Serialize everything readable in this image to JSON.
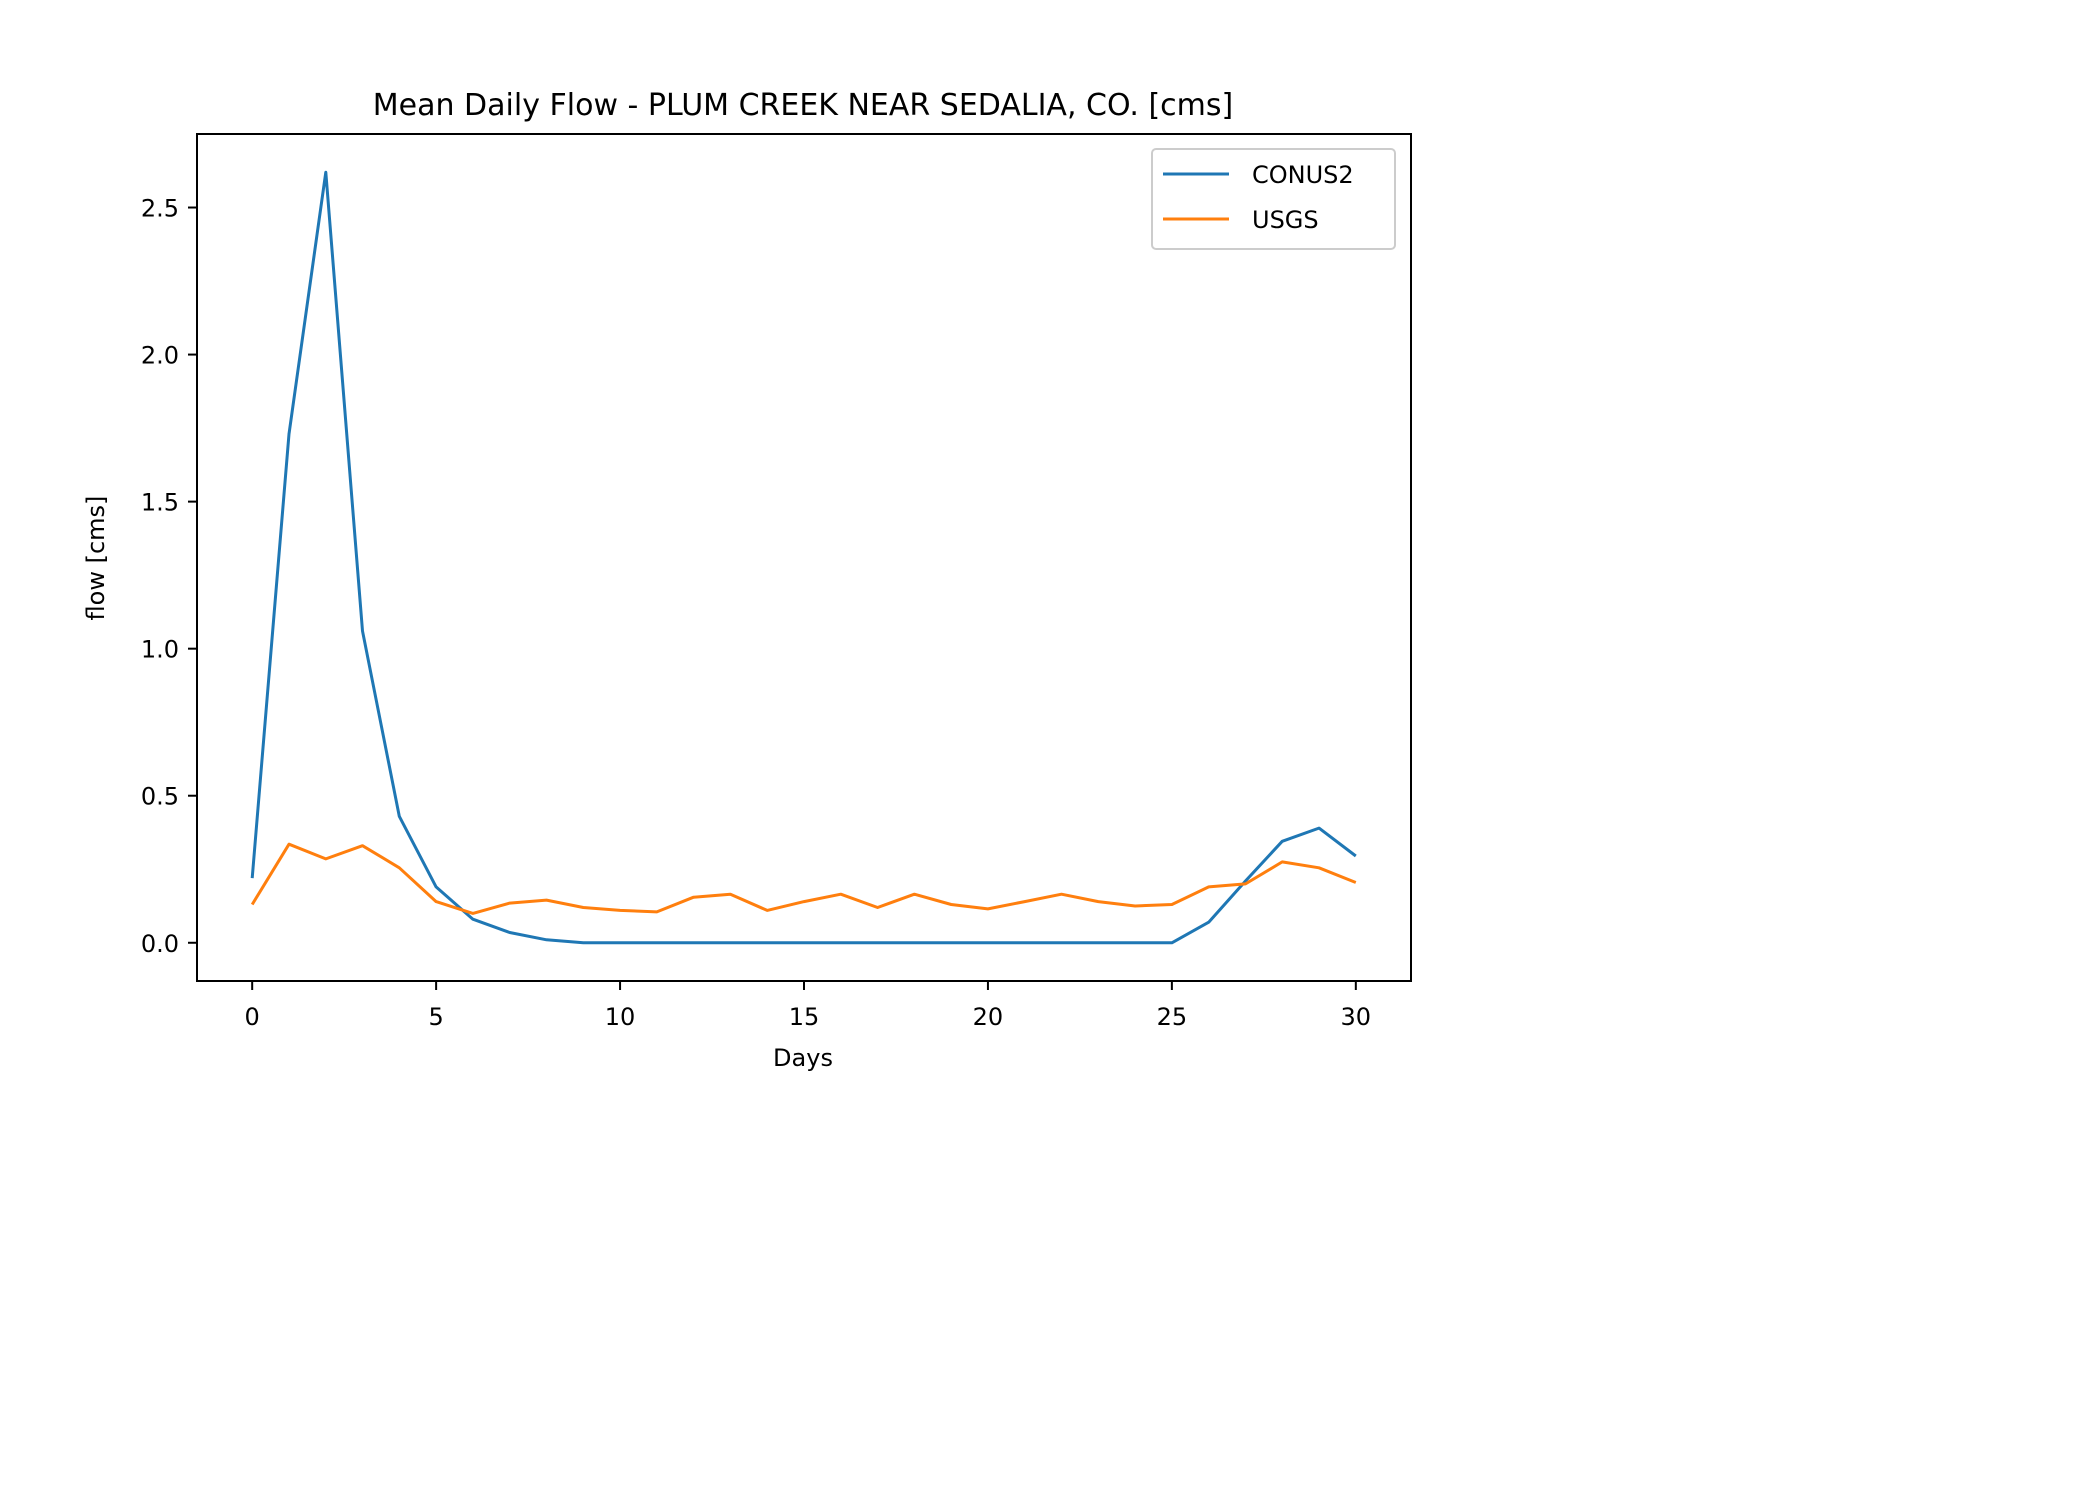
{
  "chart_data": {
    "type": "line",
    "title": "Mean Daily Flow - PLUM CREEK NEAR SEDALIA, CO. [cms]",
    "xlabel": "Days",
    "ylabel": "flow [cms]",
    "xlim": [
      -1.5,
      31.5
    ],
    "ylim": [
      -0.13,
      2.75
    ],
    "xticks": [
      0,
      5,
      10,
      15,
      20,
      25,
      30
    ],
    "xtick_labels": [
      "0",
      "5",
      "10",
      "15",
      "20",
      "25",
      "30"
    ],
    "yticks": [
      0.0,
      0.5,
      1.0,
      1.5,
      2.0,
      2.5
    ],
    "ytick_labels": [
      "0.0",
      "0.5",
      "1.0",
      "1.5",
      "2.0",
      "2.5"
    ],
    "grid": false,
    "legend_position": "upper right",
    "x": [
      0,
      1,
      2,
      3,
      4,
      5,
      6,
      7,
      8,
      9,
      10,
      11,
      12,
      13,
      14,
      15,
      16,
      17,
      18,
      19,
      20,
      21,
      22,
      23,
      24,
      25,
      26,
      27,
      28,
      29,
      30
    ],
    "series": [
      {
        "name": "CONUS2",
        "color": "#1f77b4",
        "values": [
          0.22,
          1.73,
          2.62,
          1.06,
          0.43,
          0.19,
          0.08,
          0.035,
          0.01,
          0.0,
          0.0,
          0.0,
          0.0,
          0.0,
          0.0,
          0.0,
          0.0,
          0.0,
          0.0,
          0.0,
          0.0,
          0.0,
          0.0,
          0.0,
          0.0,
          0.0,
          0.07,
          0.21,
          0.345,
          0.39,
          0.295
        ]
      },
      {
        "name": "USGS",
        "color": "#ff7f0e",
        "values": [
          0.13,
          0.335,
          0.285,
          0.33,
          0.255,
          0.14,
          0.1,
          0.135,
          0.145,
          0.12,
          0.11,
          0.105,
          0.155,
          0.165,
          0.11,
          0.14,
          0.165,
          0.12,
          0.165,
          0.13,
          0.115,
          0.14,
          0.165,
          0.14,
          0.125,
          0.13,
          0.19,
          0.2,
          0.275,
          0.255,
          0.205
        ]
      }
    ]
  }
}
